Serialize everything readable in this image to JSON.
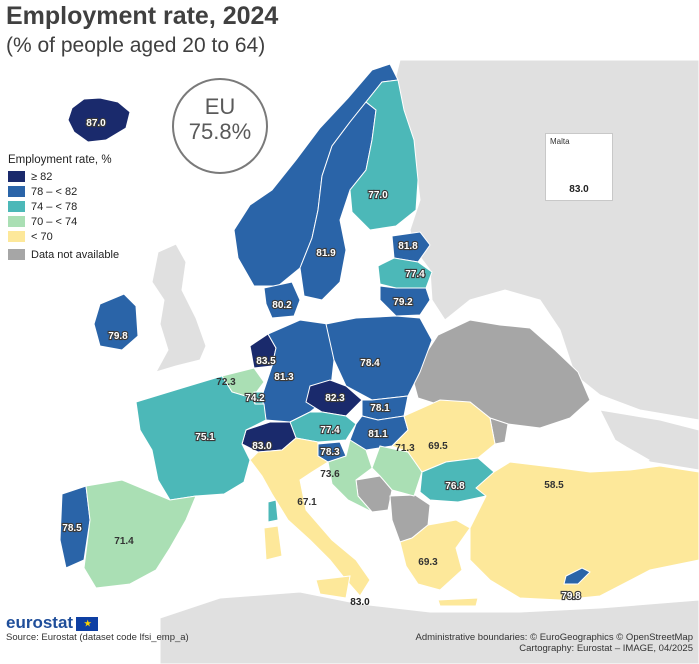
{
  "title": "Employment rate, 2024",
  "subtitle": "(% of people aged 20 to 64)",
  "eu": {
    "line1": "EU",
    "line2": "75.8%"
  },
  "legend": {
    "title": "Employment rate, %",
    "items": [
      {
        "label": "≥ 82",
        "color": "#1a2a6c"
      },
      {
        "label": "78 – < 82",
        "color": "#2a64a8"
      },
      {
        "label": "74 – < 78",
        "color": "#4cb8b8"
      },
      {
        "label": "70 – < 74",
        "color": "#aadfb4"
      },
      {
        "label": "< 70",
        "color": "#fde89a"
      },
      {
        "label": "Data not available",
        "color": "#a6a6a6"
      }
    ]
  },
  "colors": {
    "sea": "#ffffff",
    "non_eu_land": "#e0e0e0",
    "no_data": "#a6a6a6",
    "border": "#ffffff"
  },
  "countries": [
    {
      "name": "Iceland",
      "value": "87.0",
      "color": "#1a2a6c"
    },
    {
      "name": "Norway",
      "value": "",
      "color": "#2a64a8"
    },
    {
      "name": "Sweden",
      "value": "81.9",
      "color": "#2a64a8"
    },
    {
      "name": "Finland",
      "value": "77.0",
      "color": "#4cb8b8"
    },
    {
      "name": "Estonia",
      "value": "81.8",
      "color": "#2a64a8"
    },
    {
      "name": "Latvia",
      "value": "77.4",
      "color": "#4cb8b8"
    },
    {
      "name": "Lithuania",
      "value": "79.2",
      "color": "#2a64a8"
    },
    {
      "name": "Ireland",
      "value": "79.8",
      "color": "#2a64a8"
    },
    {
      "name": "Denmark",
      "value": "80.2",
      "color": "#2a64a8"
    },
    {
      "name": "Netherlands",
      "value": "83.5",
      "color": "#1a2a6c"
    },
    {
      "name": "Belgium",
      "value": "72.3",
      "color": "#aadfb4"
    },
    {
      "name": "Luxembourg",
      "value": "74.2",
      "color": "#4cb8b8"
    },
    {
      "name": "Germany",
      "value": "81.3",
      "color": "#2a64a8"
    },
    {
      "name": "Poland",
      "value": "78.4",
      "color": "#2a64a8"
    },
    {
      "name": "Czechia",
      "value": "82.3",
      "color": "#1a2a6c"
    },
    {
      "name": "Slovakia",
      "value": "78.1",
      "color": "#2a64a8"
    },
    {
      "name": "Austria",
      "value": "77.4",
      "color": "#4cb8b8"
    },
    {
      "name": "Hungary",
      "value": "81.1",
      "color": "#2a64a8"
    },
    {
      "name": "Switzerland",
      "value": "83.0",
      "color": "#1a2a6c"
    },
    {
      "name": "France",
      "value": "75.1",
      "color": "#4cb8b8"
    },
    {
      "name": "Slovenia",
      "value": "78.3",
      "color": "#2a64a8"
    },
    {
      "name": "Croatia",
      "value": "73.6",
      "color": "#aadfb4"
    },
    {
      "name": "Serbia",
      "value": "71.3",
      "color": "#aadfb4"
    },
    {
      "name": "Romania",
      "value": "69.5",
      "color": "#fde89a"
    },
    {
      "name": "Bulgaria",
      "value": "76.8",
      "color": "#4cb8b8"
    },
    {
      "name": "Italy",
      "value": "67.1",
      "color": "#fde89a"
    },
    {
      "name": "Portugal",
      "value": "78.5",
      "color": "#2a64a8"
    },
    {
      "name": "Spain",
      "value": "71.4",
      "color": "#aadfb4"
    },
    {
      "name": "Greece",
      "value": "69.3",
      "color": "#fde89a"
    },
    {
      "name": "Türkiye",
      "value": "58.5",
      "color": "#fde89a"
    },
    {
      "name": "Cyprus",
      "value": "79.8",
      "color": "#2a64a8"
    },
    {
      "name": "Malta",
      "value": "83.0",
      "color": "#1a2a6c"
    }
  ],
  "sicily_label": "83.0",
  "malta": {
    "name": "Malta",
    "value": "83.0"
  },
  "footer": {
    "logo": "eurostat",
    "source": "Source: Eurostat (dataset code lfsi_emp_a)",
    "credits_1": "Administrative boundaries: © EuroGeographics © OpenStreetMap",
    "credits_2": "Cartography: Eurostat – IMAGE, 04/2025"
  }
}
